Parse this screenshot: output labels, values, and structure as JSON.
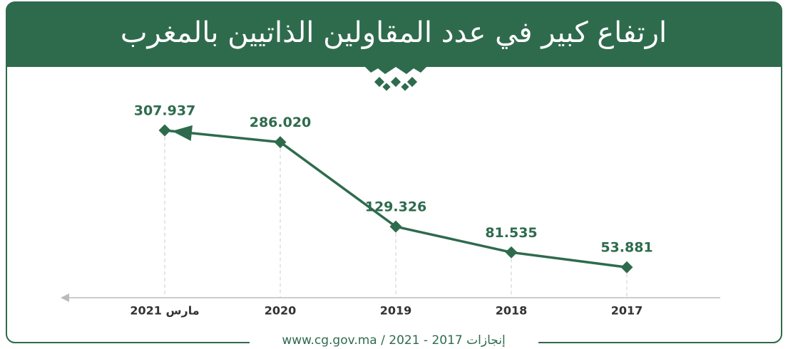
{
  "chart_data": {
    "type": "line",
    "title": "ارتفاع كبير في عدد المقاولين الذاتيين بالمغرب",
    "categories": [
      "مارس 2021",
      "2020",
      "2019",
      "2018",
      "2017"
    ],
    "values": [
      307937,
      286020,
      129326,
      81535,
      53881
    ],
    "value_labels": [
      "307.937",
      "286.020",
      "129.326",
      "81.535",
      "53.881"
    ],
    "color": "#2e6b4d",
    "source": "www.cg.gov.ma / 2021 - 2017 إنجازات"
  }
}
